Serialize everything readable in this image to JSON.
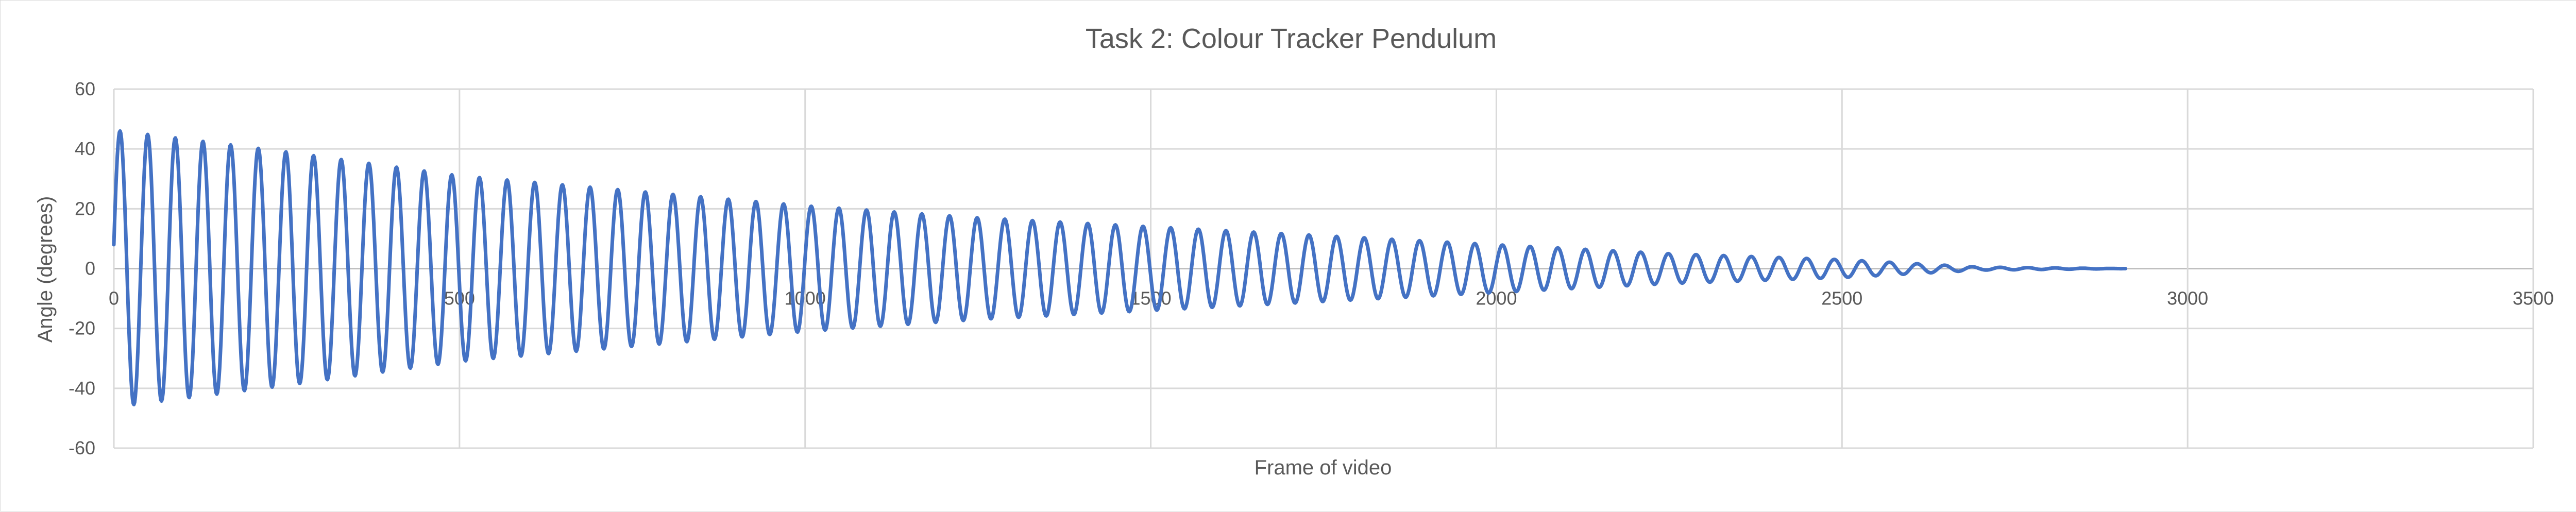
{
  "chart_data": {
    "type": "line",
    "title": "Task 2: Colour Tracker Pendulum",
    "xlabel": "Frame of video",
    "ylabel": "Angle (degrees)",
    "xlim": [
      0,
      3500
    ],
    "ylim": [
      -60,
      60
    ],
    "x_ticks": [
      0,
      500,
      1000,
      1500,
      2000,
      2500,
      3000,
      3500
    ],
    "y_ticks": [
      -60,
      -40,
      -20,
      0,
      20,
      40,
      60
    ],
    "grid": true,
    "legend": "none",
    "series": [
      {
        "color": "#4472C4",
        "description_values": {
          "x_start": 0,
          "x_end": 2910,
          "y_start": 8,
          "period_frames": 40,
          "peak_amplitudes": [
            {
              "x": 10,
              "y": 46
            },
            {
              "x": 250,
              "y": 39
            },
            {
              "x": 500,
              "y": 31
            },
            {
              "x": 750,
              "y": 26
            },
            {
              "x": 1000,
              "y": 21
            },
            {
              "x": 1250,
              "y": 17
            },
            {
              "x": 1500,
              "y": 14
            },
            {
              "x": 1750,
              "y": 11
            },
            {
              "x": 2000,
              "y": 8
            },
            {
              "x": 2250,
              "y": 5
            },
            {
              "x": 2500,
              "y": 3
            },
            {
              "x": 2700,
              "y": 0.5
            },
            {
              "x": 2910,
              "y": 0
            }
          ]
        }
      }
    ]
  }
}
